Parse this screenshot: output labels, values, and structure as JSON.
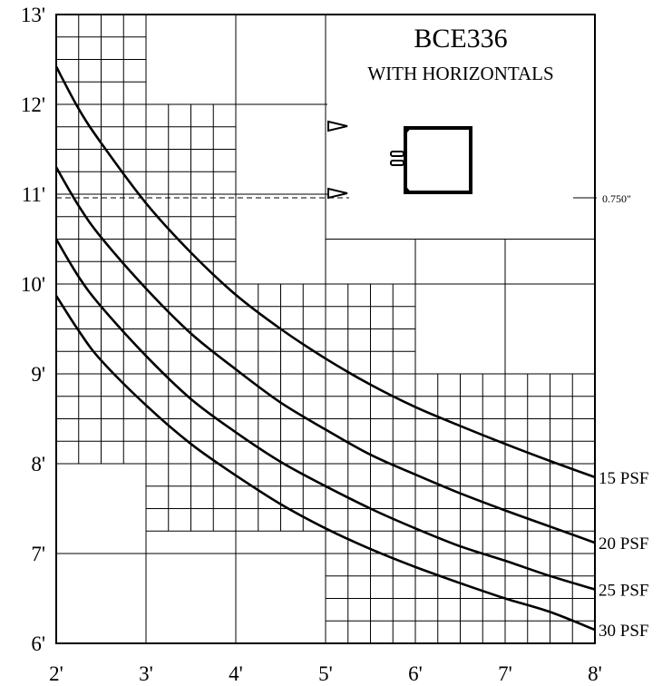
{
  "chart_data": {
    "type": "line",
    "title": "BCE336",
    "subtitle": "WITH HORIZONTALS",
    "xlabel": "",
    "ylabel": "",
    "xlim": [
      2,
      8
    ],
    "ylim": [
      6,
      13
    ],
    "x_tick_labels": [
      "2'",
      "3'",
      "4'",
      "5'",
      "6'",
      "7'",
      "8'"
    ],
    "y_tick_labels": [
      "6'",
      "7'",
      "8'",
      "9'",
      "10'",
      "11'",
      "12'",
      "13'"
    ],
    "dimension_label": "0.750\"",
    "series": [
      {
        "name": "15 PSF",
        "x": [
          2,
          2.25,
          2.5,
          3,
          3.5,
          4,
          4.5,
          5,
          5.5,
          6,
          6.5,
          7,
          7.5,
          8
        ],
        "y": [
          12.42,
          11.95,
          11.57,
          10.9,
          10.35,
          9.88,
          9.5,
          9.17,
          8.88,
          8.63,
          8.42,
          8.22,
          8.03,
          7.85
        ]
      },
      {
        "name": "20 PSF",
        "x": [
          2,
          2.25,
          2.5,
          3,
          3.5,
          4,
          4.5,
          5,
          5.5,
          6,
          6.5,
          7,
          7.5,
          8
        ],
        "y": [
          11.3,
          10.87,
          10.52,
          9.95,
          9.45,
          9.05,
          8.68,
          8.38,
          8.1,
          7.88,
          7.67,
          7.48,
          7.3,
          7.12
        ]
      },
      {
        "name": "25 PSF",
        "x": [
          2,
          2.25,
          2.5,
          3,
          3.5,
          4,
          4.5,
          5,
          5.5,
          6,
          6.5,
          7,
          7.5,
          8
        ],
        "y": [
          10.5,
          10.08,
          9.75,
          9.2,
          8.72,
          8.35,
          8.02,
          7.75,
          7.5,
          7.28,
          7.08,
          6.92,
          6.75,
          6.6
        ]
      },
      {
        "name": "30 PSF",
        "x": [
          2,
          2.25,
          2.5,
          3,
          3.5,
          4,
          4.5,
          5,
          5.5,
          6,
          6.5,
          7,
          7.5,
          8
        ],
        "y": [
          9.87,
          9.48,
          9.15,
          8.65,
          8.22,
          7.87,
          7.55,
          7.28,
          7.05,
          6.85,
          6.67,
          6.5,
          6.35,
          6.15
        ]
      }
    ]
  }
}
